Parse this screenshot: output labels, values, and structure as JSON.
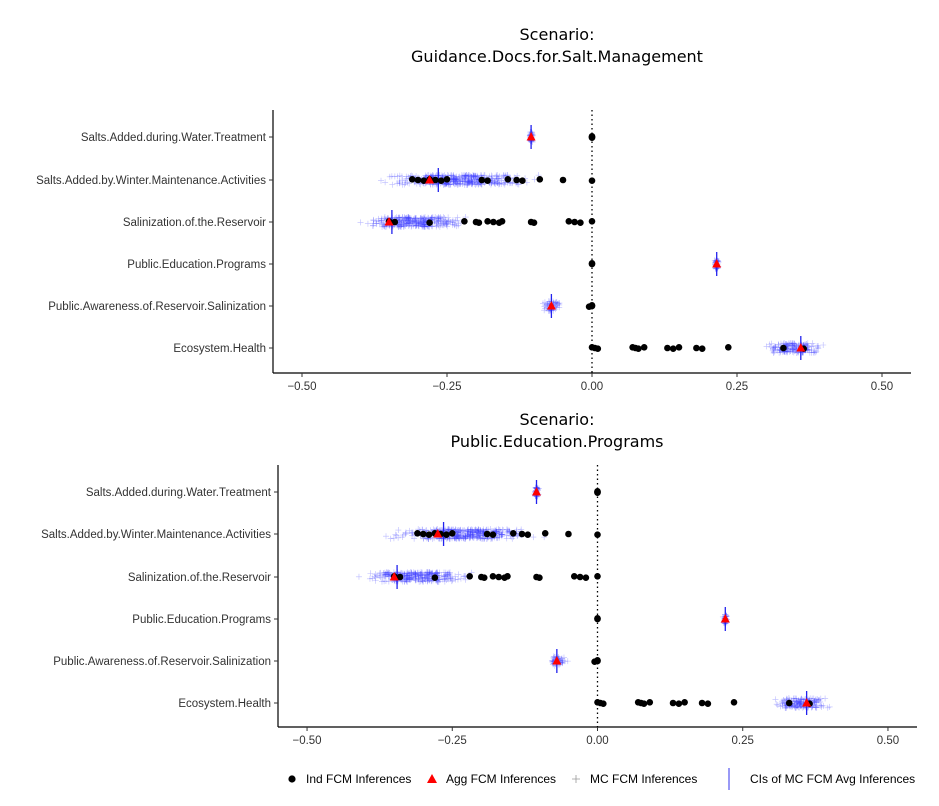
{
  "chart_data": [
    {
      "type": "scatter",
      "title_line1": "Scenario:",
      "title_line2": "Guidance.Docs.for.Salt.Management",
      "categories": [
        "Salts.Added.during.Water.Treatment",
        "Salts.Added.by.Winter.Maintenance.Activities",
        "Salinization.of.the.Reservoir",
        "Public.Education.Programs",
        "Public.Awareness.of.Reservoir.Salinization",
        "Ecosystem.Health"
      ],
      "xlim": [
        -0.55,
        0.55
      ],
      "xticks": [
        -0.5,
        -0.25,
        0.0,
        0.25,
        0.5
      ],
      "xtick_labels": [
        "−0.50",
        "−0.25",
        "0.00",
        "0.25",
        "0.50"
      ],
      "zero_line": "dotted",
      "series": [
        {
          "name": "Ind FCM Inferences",
          "color": "#000000",
          "marker": "circle",
          "points": [
            {
              "category": 0,
              "x": [
                0.0,
                0.0,
                0.0
              ]
            },
            {
              "category": 1,
              "x": [
                -0.31,
                -0.3,
                -0.29,
                -0.28,
                -0.27,
                -0.26,
                -0.25,
                -0.19,
                -0.18,
                -0.145,
                -0.13,
                -0.12,
                -0.09,
                -0.05,
                0.0
              ]
            },
            {
              "category": 2,
              "x": [
                -0.35,
                -0.34,
                -0.28,
                -0.22,
                -0.2,
                -0.195,
                -0.18,
                -0.17,
                -0.16,
                -0.155,
                -0.105,
                -0.1,
                -0.04,
                -0.03,
                -0.02,
                0.0
              ]
            },
            {
              "category": 3,
              "x": [
                0.0,
                0.0
              ]
            },
            {
              "category": 4,
              "x": [
                0.0,
                0.0,
                -0.005
              ]
            },
            {
              "category": 5,
              "x": [
                0.0,
                0.005,
                0.01,
                0.07,
                0.075,
                0.08,
                0.09,
                0.13,
                0.14,
                0.15,
                0.18,
                0.19,
                0.235,
                0.33,
                0.365
              ]
            }
          ]
        },
        {
          "name": "Agg FCM Inferences",
          "color": "#ff0000",
          "marker": "triangle",
          "points": [
            {
              "category": 0,
              "x": -0.105
            },
            {
              "category": 1,
              "x": -0.28
            },
            {
              "category": 2,
              "x": -0.35
            },
            {
              "category": 3,
              "x": 0.215
            },
            {
              "category": 4,
              "x": -0.07
            },
            {
              "category": 5,
              "x": 0.36
            }
          ]
        },
        {
          "name": "MC FCM Inferences",
          "color": "#3b3bff",
          "marker": "plus",
          "ranges": [
            {
              "category": 0,
              "x_min": -0.11,
              "x_max": -0.1
            },
            {
              "category": 1,
              "x_min": -0.38,
              "x_max": -0.08
            },
            {
              "category": 2,
              "x_min": -0.42,
              "x_max": -0.2
            },
            {
              "category": 3,
              "x_min": 0.21,
              "x_max": 0.22
            },
            {
              "category": 4,
              "x_min": -0.09,
              "x_max": -0.05
            },
            {
              "category": 5,
              "x_min": 0.29,
              "x_max": 0.41
            }
          ]
        },
        {
          "name": "CIs of MC FCM Avg Inferences",
          "color": "#2222ee",
          "marker": "vline",
          "points": [
            {
              "category": 0,
              "x": -0.105
            },
            {
              "category": 1,
              "x": -0.265
            },
            {
              "category": 2,
              "x": -0.345
            },
            {
              "category": 3,
              "x": 0.215
            },
            {
              "category": 4,
              "x": -0.07
            },
            {
              "category": 5,
              "x": 0.36
            }
          ]
        }
      ]
    },
    {
      "type": "scatter",
      "title_line1": "Scenario:",
      "title_line2": "Public.Education.Programs",
      "categories": [
        "Salts.Added.during.Water.Treatment",
        "Salts.Added.by.Winter.Maintenance.Activities",
        "Salinization.of.the.Reservoir",
        "Public.Education.Programs",
        "Public.Awareness.of.Reservoir.Salinization",
        "Ecosystem.Health"
      ],
      "xlim": [
        -0.55,
        0.55
      ],
      "xticks": [
        -0.5,
        -0.25,
        0.0,
        0.25,
        0.5
      ],
      "xtick_labels": [
        "−0.50",
        "−0.25",
        "0.00",
        "0.25",
        "0.50"
      ],
      "zero_line": "dotted",
      "series": [
        {
          "name": "Ind FCM Inferences",
          "color": "#000000",
          "marker": "circle",
          "points": [
            {
              "category": 0,
              "x": [
                0.0,
                0.0,
                0.0
              ]
            },
            {
              "category": 1,
              "x": [
                -0.31,
                -0.3,
                -0.29,
                -0.28,
                -0.27,
                -0.26,
                -0.25,
                -0.19,
                -0.18,
                -0.145,
                -0.13,
                -0.12,
                -0.09,
                -0.05,
                0.0
              ]
            },
            {
              "category": 2,
              "x": [
                -0.35,
                -0.34,
                -0.28,
                -0.22,
                -0.2,
                -0.195,
                -0.18,
                -0.17,
                -0.16,
                -0.155,
                -0.105,
                -0.1,
                -0.04,
                -0.03,
                -0.02,
                0.0
              ]
            },
            {
              "category": 3,
              "x": [
                0.0,
                0.0
              ]
            },
            {
              "category": 4,
              "x": [
                0.0,
                0.0,
                -0.005
              ]
            },
            {
              "category": 5,
              "x": [
                0.0,
                0.005,
                0.01,
                0.07,
                0.075,
                0.08,
                0.09,
                0.13,
                0.14,
                0.15,
                0.18,
                0.19,
                0.235,
                0.33,
                0.365
              ]
            }
          ]
        },
        {
          "name": "Agg FCM Inferences",
          "color": "#ff0000",
          "marker": "triangle",
          "points": [
            {
              "category": 0,
              "x": -0.105
            },
            {
              "category": 1,
              "x": -0.275
            },
            {
              "category": 2,
              "x": -0.35
            },
            {
              "category": 3,
              "x": 0.22
            },
            {
              "category": 4,
              "x": -0.07
            },
            {
              "category": 5,
              "x": 0.36
            }
          ]
        },
        {
          "name": "MC FCM Inferences",
          "color": "#3b3bff",
          "marker": "plus",
          "ranges": [
            {
              "category": 0,
              "x_min": -0.11,
              "x_max": -0.1
            },
            {
              "category": 1,
              "x_min": -0.38,
              "x_max": -0.08
            },
            {
              "category": 2,
              "x_min": -0.42,
              "x_max": -0.2
            },
            {
              "category": 3,
              "x_min": 0.215,
              "x_max": 0.225
            },
            {
              "category": 4,
              "x_min": -0.09,
              "x_max": -0.05
            },
            {
              "category": 5,
              "x_min": 0.29,
              "x_max": 0.41
            }
          ]
        },
        {
          "name": "CIs of MC FCM Avg Inferences",
          "color": "#2222ee",
          "marker": "vline",
          "points": [
            {
              "category": 0,
              "x": -0.105
            },
            {
              "category": 1,
              "x": -0.265
            },
            {
              "category": 2,
              "x": -0.345
            },
            {
              "category": 3,
              "x": 0.22
            },
            {
              "category": 4,
              "x": -0.07
            },
            {
              "category": 5,
              "x": 0.36
            }
          ]
        }
      ]
    }
  ],
  "legend": {
    "position": "bottom",
    "items": [
      {
        "label": "Ind FCM Inferences",
        "marker": "circle",
        "color": "#000000"
      },
      {
        "label": "Agg FCM Inferences",
        "marker": "triangle",
        "color": "#ff0000"
      },
      {
        "label": "MC FCM Inferences",
        "marker": "plus",
        "color": "#9a9a9a"
      },
      {
        "label": "CIs of MC FCM Avg Inferences",
        "marker": "vline",
        "color": "#3333ee"
      }
    ]
  }
}
